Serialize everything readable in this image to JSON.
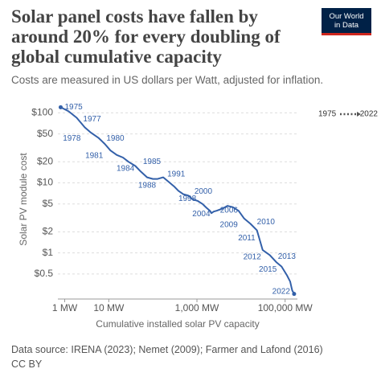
{
  "chart_data": {
    "type": "line",
    "title": "Solar panel costs have fallen by around 20% for every doubling of global cumulative capacity",
    "subtitle": "Costs are measured in US dollars per Watt, adjusted for inflation.",
    "logo": [
      "Our World",
      "in Data"
    ],
    "source": "Data source: IRENA (2023); Nemet (2009); Farmer and Lafond (2016)",
    "license": "CC BY",
    "x_label": "Cumulative installed solar PV capacity",
    "y_label": "Solar PV module cost",
    "x_log": true,
    "y_log": true,
    "grid": true,
    "color": "#3360a9",
    "x": [
      0.81,
      1.23,
      1.87,
      2.85,
      3.8,
      5.8,
      8.1,
      10.9,
      15.2,
      21,
      28,
      40,
      53,
      74,
      100,
      128,
      172,
      230,
      310,
      380,
      490,
      630,
      810,
      1050,
      1340,
      1650,
      1970,
      2130,
      2400,
      2800,
      3800,
      4900,
      6500,
      8800,
      11800,
      16400,
      23000,
      31000,
      45000,
      63000,
      83000,
      110000,
      130000,
      140000,
      145000,
      150000,
      155000,
      160000
    ],
    "values": [
      120,
      105,
      85,
      62,
      53,
      44,
      36,
      29,
      25,
      23,
      20,
      17.4,
      14.5,
      12,
      11.4,
      11.4,
      12,
      10.3,
      8.8,
      7.7,
      6.9,
      6.6,
      5.8,
      5.5,
      5.0,
      4.4,
      4.0,
      3.7,
      3.9,
      4.0,
      4.3,
      4.7,
      4.5,
      4.0,
      3.1,
      2.6,
      2.1,
      1.1,
      0.93,
      0.74,
      0.64,
      0.48,
      0.39,
      0.32,
      0.29,
      0.28,
      0.27,
      0.26
    ],
    "point_labels": [
      "1975",
      null,
      "1977",
      "1978",
      null,
      "1980",
      "1981",
      null,
      null,
      "1984",
      "1985",
      null,
      null,
      "1988",
      null,
      null,
      "1991",
      null,
      null,
      null,
      null,
      null,
      null,
      "1998",
      null,
      "2000",
      null,
      null,
      null,
      "2004",
      null,
      "2006",
      null,
      null,
      "2009",
      "2010",
      "2011",
      "2012",
      "2013",
      null,
      "2015",
      null,
      null,
      null,
      null,
      null,
      null,
      "2022"
    ],
    "xlim": [
      0.7,
      190000
    ],
    "ylim": [
      0.22,
      150
    ],
    "xticks": [
      {
        "value": 1,
        "label": "1 MW"
      },
      {
        "value": 10,
        "label": "10 MW"
      },
      {
        "value": 1000,
        "label": "1,000 MW"
      },
      {
        "value": 100000,
        "label": "100,000 MW"
      }
    ],
    "yticks": [
      {
        "value": 0.5,
        "label": "$0.5"
      },
      {
        "value": 1,
        "label": "$1"
      },
      {
        "value": 2,
        "label": "$2"
      },
      {
        "value": 5,
        "label": "$5"
      },
      {
        "value": 10,
        "label": "$10"
      },
      {
        "value": 20,
        "label": "$20"
      },
      {
        "value": 50,
        "label": "$50"
      },
      {
        "value": 100,
        "label": "$100"
      }
    ]
  }
}
